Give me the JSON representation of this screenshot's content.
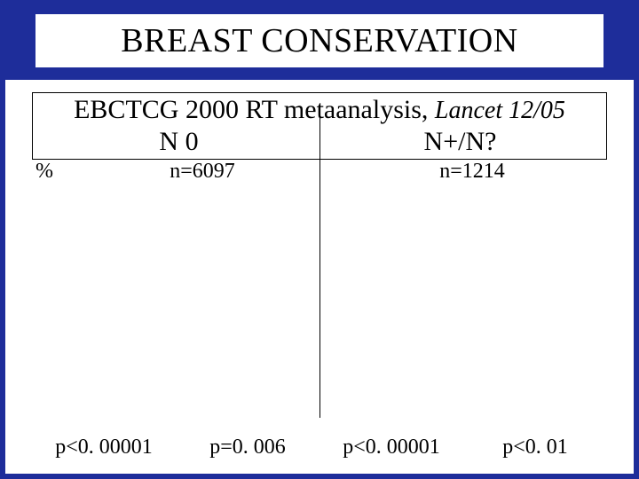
{
  "title": "BREAST CONSERVATION",
  "subtitle": {
    "main": "EBCTCG 2000 RT metaanalysis,",
    "journal": "Lancet 12/05"
  },
  "columns": {
    "left_header": "N 0",
    "right_header": "N+/N?",
    "left_n": "n=6097",
    "right_n": "n=1214"
  },
  "y_axis_label": "%",
  "p_values": {
    "p1": "p<0. 00001",
    "p2": "p=0. 006",
    "p3": "p<0. 00001",
    "p4": "p<0. 01"
  },
  "colors": {
    "frame": "#1e2d9a",
    "background": "#ffffff",
    "text": "#000000"
  }
}
